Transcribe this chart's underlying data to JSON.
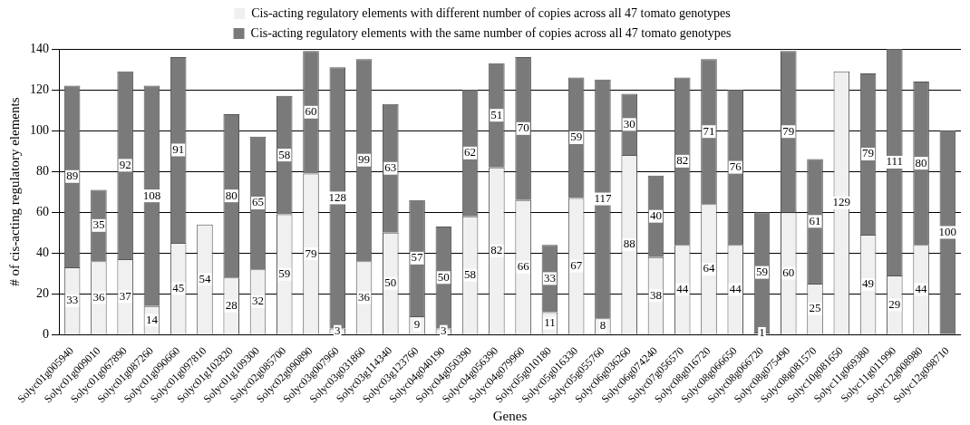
{
  "chart_data": {
    "type": "bar",
    "stacked": true,
    "xlabel": "Genes",
    "ylabel": "# of cis-acting regulatory elements",
    "categories": [
      "Solyc01g005940",
      "Solyc01g009010",
      "Solyc01g067890",
      "Solyc01g087260",
      "Solyc01g090660",
      "Solyc01g097810",
      "Solyc01g102820",
      "Solyc01g109300",
      "Solyc02g085700",
      "Solyc02g090890",
      "Solyc03g007960",
      "Solyc03g031860",
      "Solyc03g114340",
      "Solyc03g123760",
      "Solyc04g040190",
      "Solyc04g050390",
      "Solyc04g056390",
      "Solyc04g079960",
      "Solyc05g010180",
      "Solyc05g016330",
      "Solyc05g055760",
      "Solyc06g036260",
      "Solyc06g074240",
      "Solyc07g056570",
      "Solyc08g016720",
      "Solyc08g066650",
      "Solyc08g066720",
      "Solyc08g075490",
      "Solyc08g081570",
      "Solyc10g081650",
      "Solyc11g069380",
      "Solyc11g011990",
      "Solyc12g008980",
      "Solyc12g098710"
    ],
    "series": [
      {
        "name": "Cis-acting regulatory elements with different number of copies across all 47 tomato genotypes",
        "color": "#f0f0f0",
        "values": [
          33,
          36,
          37,
          14,
          45,
          54,
          28,
          32,
          59,
          79,
          3,
          36,
          50,
          9,
          3,
          58,
          82,
          66,
          11,
          67,
          8,
          88,
          38,
          44,
          64,
          44,
          1,
          60,
          25,
          129,
          49,
          29,
          44,
          null
        ]
      },
      {
        "name": "Cis-acting regulatory elements with the same number of copies across all 47 tomato genotypes",
        "color": "#7a7a7a",
        "values": [
          89,
          35,
          92,
          108,
          91,
          null,
          80,
          65,
          58,
          60,
          128,
          99,
          63,
          57,
          50,
          62,
          51,
          70,
          33,
          59,
          117,
          30,
          40,
          82,
          71,
          76,
          59,
          79,
          61,
          null,
          79,
          111,
          80,
          100
        ]
      }
    ],
    "ylim": [
      0,
      140
    ],
    "yticks": [
      0,
      20,
      40,
      60,
      80,
      100,
      120,
      140
    ],
    "grid": "y",
    "legend": "top",
    "data_labels": true
  }
}
